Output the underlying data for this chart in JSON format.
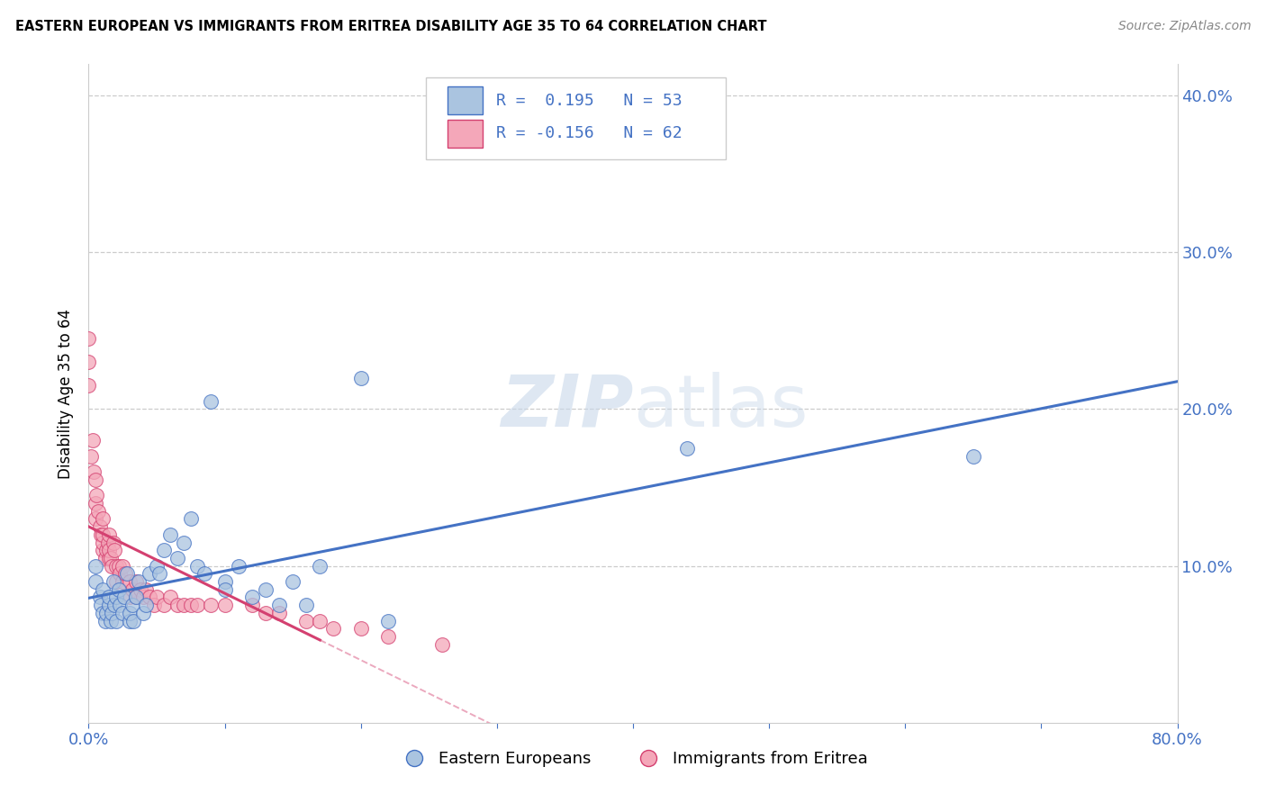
{
  "title": "EASTERN EUROPEAN VS IMMIGRANTS FROM ERITREA DISABILITY AGE 35 TO 64 CORRELATION CHART",
  "source": "Source: ZipAtlas.com",
  "ylabel": "Disability Age 35 to 64",
  "xlim": [
    0.0,
    0.8
  ],
  "ylim": [
    0.0,
    0.42
  ],
  "xtick_vals": [
    0.0,
    0.1,
    0.2,
    0.3,
    0.4,
    0.5,
    0.6,
    0.7,
    0.8
  ],
  "xticklabels": [
    "0.0%",
    "",
    "",
    "",
    "",
    "",
    "",
    "",
    "80.0%"
  ],
  "ytick_vals": [
    0.0,
    0.1,
    0.2,
    0.3,
    0.4
  ],
  "yticklabels_right": [
    "",
    "10.0%",
    "20.0%",
    "30.0%",
    "40.0%"
  ],
  "grid_color": "#cccccc",
  "background_color": "#ffffff",
  "series1_label": "Eastern Europeans",
  "series1_color": "#aac4e0",
  "series1_edge_color": "#4472c4",
  "series2_label": "Immigrants from Eritrea",
  "series2_color": "#f4a7b9",
  "series2_edge_color": "#d44070",
  "legend_R1": "R =  0.195   N = 53",
  "legend_R2": "R = -0.156   N = 62",
  "ee_x": [
    0.005,
    0.005,
    0.008,
    0.009,
    0.01,
    0.01,
    0.012,
    0.013,
    0.015,
    0.015,
    0.016,
    0.017,
    0.018,
    0.019,
    0.02,
    0.02,
    0.022,
    0.023,
    0.025,
    0.026,
    0.028,
    0.03,
    0.03,
    0.032,
    0.033,
    0.035,
    0.037,
    0.04,
    0.042,
    0.045,
    0.05,
    0.052,
    0.055,
    0.06,
    0.065,
    0.07,
    0.075,
    0.08,
    0.085,
    0.09,
    0.1,
    0.1,
    0.11,
    0.12,
    0.13,
    0.14,
    0.15,
    0.16,
    0.17,
    0.2,
    0.22,
    0.44,
    0.65
  ],
  "ee_y": [
    0.09,
    0.1,
    0.08,
    0.075,
    0.07,
    0.085,
    0.065,
    0.07,
    0.075,
    0.08,
    0.065,
    0.07,
    0.09,
    0.075,
    0.065,
    0.08,
    0.085,
    0.075,
    0.07,
    0.08,
    0.095,
    0.065,
    0.07,
    0.075,
    0.065,
    0.08,
    0.09,
    0.07,
    0.075,
    0.095,
    0.1,
    0.095,
    0.11,
    0.12,
    0.105,
    0.115,
    0.13,
    0.1,
    0.095,
    0.205,
    0.09,
    0.085,
    0.1,
    0.08,
    0.085,
    0.075,
    0.09,
    0.075,
    0.1,
    0.22,
    0.065,
    0.175,
    0.17
  ],
  "er_x": [
    0.0,
    0.0,
    0.0,
    0.002,
    0.003,
    0.004,
    0.005,
    0.005,
    0.005,
    0.006,
    0.007,
    0.008,
    0.009,
    0.01,
    0.01,
    0.01,
    0.01,
    0.012,
    0.013,
    0.014,
    0.015,
    0.015,
    0.015,
    0.016,
    0.017,
    0.018,
    0.019,
    0.02,
    0.02,
    0.022,
    0.023,
    0.025,
    0.025,
    0.027,
    0.03,
    0.03,
    0.032,
    0.035,
    0.035,
    0.038,
    0.04,
    0.042,
    0.045,
    0.048,
    0.05,
    0.055,
    0.06,
    0.065,
    0.07,
    0.075,
    0.08,
    0.09,
    0.1,
    0.12,
    0.13,
    0.14,
    0.16,
    0.17,
    0.18,
    0.2,
    0.22,
    0.26
  ],
  "er_y": [
    0.215,
    0.23,
    0.245,
    0.17,
    0.18,
    0.16,
    0.13,
    0.14,
    0.155,
    0.145,
    0.135,
    0.125,
    0.12,
    0.11,
    0.115,
    0.12,
    0.13,
    0.105,
    0.11,
    0.115,
    0.105,
    0.11,
    0.12,
    0.105,
    0.1,
    0.115,
    0.11,
    0.09,
    0.1,
    0.1,
    0.095,
    0.09,
    0.1,
    0.095,
    0.08,
    0.09,
    0.085,
    0.08,
    0.09,
    0.085,
    0.08,
    0.085,
    0.08,
    0.075,
    0.08,
    0.075,
    0.08,
    0.075,
    0.075,
    0.075,
    0.075,
    0.075,
    0.075,
    0.075,
    0.07,
    0.07,
    0.065,
    0.065,
    0.06,
    0.06,
    0.055,
    0.05
  ]
}
